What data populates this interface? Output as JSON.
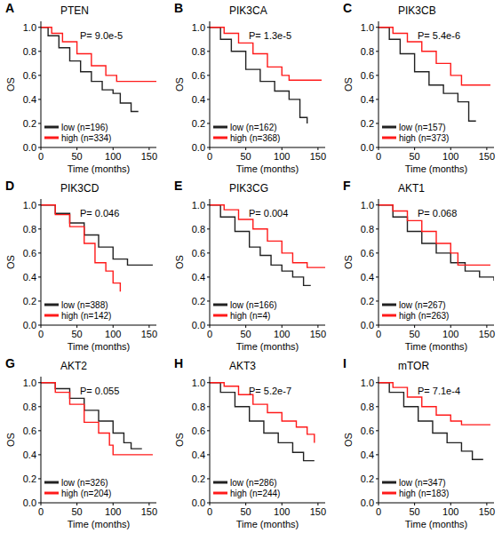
{
  "chart_data": [
    {
      "type": "line",
      "panel": "A",
      "title": "PTEN",
      "annotations": [
        "P= 9.0e-5"
      ],
      "x_label": "Time (months)",
      "y_label": "OS",
      "xlim": [
        0,
        160
      ],
      "xticks": [
        0,
        50,
        100,
        150
      ],
      "ylim": [
        0,
        1.05
      ],
      "yticks": [
        {
          "value": 0,
          "label": "0.0"
        },
        0.2,
        0.4,
        0.6,
        0.8,
        {
          "value": 1,
          "label": "1.0"
        }
      ],
      "grid": false,
      "legend": "lower left",
      "line_style": "step",
      "series": [
        {
          "name": "low (n=196)",
          "color": "#222222",
          "x": [
            0,
            10,
            25,
            40,
            55,
            70,
            85,
            100,
            110,
            125,
            135
          ],
          "values": [
            1,
            0.93,
            0.83,
            0.72,
            0.63,
            0.55,
            0.48,
            0.45,
            0.37,
            0.3,
            0.3
          ]
        },
        {
          "name": "high (n=334)",
          "color": "#ff1a1a",
          "x": [
            0,
            15,
            30,
            50,
            70,
            90,
            105,
            160
          ],
          "values": [
            1,
            0.95,
            0.88,
            0.78,
            0.68,
            0.6,
            0.55,
            0.55
          ]
        }
      ]
    },
    {
      "type": "line",
      "panel": "B",
      "title": "PIK3CA",
      "annotations": [
        "P= 1.3e-5"
      ],
      "x_label": "Time (months)",
      "y_label": "OS",
      "xlim": [
        0,
        160
      ],
      "xticks": [
        0,
        50,
        100,
        150
      ],
      "ylim": [
        0,
        1.05
      ],
      "yticks": [
        {
          "value": 0,
          "label": "0.0"
        },
        0.2,
        0.4,
        0.6,
        0.8,
        {
          "value": 1,
          "label": "1.0"
        }
      ],
      "grid": false,
      "legend": "lower left",
      "line_style": "step",
      "series": [
        {
          "name": "low (n=162)",
          "color": "#222222",
          "x": [
            0,
            15,
            30,
            50,
            70,
            90,
            110,
            125,
            135
          ],
          "values": [
            1,
            0.9,
            0.8,
            0.65,
            0.55,
            0.47,
            0.4,
            0.25,
            0.2
          ]
        },
        {
          "name": "high (n=368)",
          "color": "#ff1a1a",
          "x": [
            0,
            20,
            40,
            60,
            80,
            100,
            110,
            155
          ],
          "values": [
            1,
            0.95,
            0.87,
            0.78,
            0.67,
            0.6,
            0.56,
            0.56
          ]
        }
      ]
    },
    {
      "type": "line",
      "panel": "C",
      "title": "PIK3CB",
      "annotations": [
        "P= 5.4e-6"
      ],
      "x_label": "Time (months)",
      "y_label": "OS",
      "xlim": [
        0,
        160
      ],
      "xticks": [
        0,
        50,
        100,
        150
      ],
      "ylim": [
        0,
        1.05
      ],
      "yticks": [
        {
          "value": 0,
          "label": "0.0"
        },
        0.2,
        0.4,
        0.6,
        0.8,
        {
          "value": 1,
          "label": "1.0"
        }
      ],
      "grid": false,
      "legend": "lower left",
      "line_style": "step",
      "series": [
        {
          "name": "low (n=157)",
          "color": "#222222",
          "x": [
            0,
            15,
            30,
            50,
            70,
            90,
            110,
            125,
            135
          ],
          "values": [
            1,
            0.9,
            0.78,
            0.63,
            0.52,
            0.45,
            0.38,
            0.22,
            0.22
          ]
        },
        {
          "name": "high (n=373)",
          "color": "#ff1a1a",
          "x": [
            0,
            20,
            40,
            60,
            80,
            100,
            115,
            155
          ],
          "values": [
            1,
            0.95,
            0.88,
            0.8,
            0.7,
            0.6,
            0.52,
            0.52
          ]
        }
      ]
    },
    {
      "type": "line",
      "panel": "D",
      "title": "PIK3CD",
      "annotations": [
        "P= 0.046"
      ],
      "x_label": "Time (months)",
      "y_label": "OS",
      "xlim": [
        0,
        160
      ],
      "xticks": [
        0,
        50,
        100,
        150
      ],
      "ylim": [
        0,
        1.05
      ],
      "yticks": [
        {
          "value": 0,
          "label": "0.0"
        },
        0.2,
        0.4,
        0.6,
        0.8,
        {
          "value": 1,
          "label": "1.0"
        }
      ],
      "grid": false,
      "legend": "lower left",
      "line_style": "step",
      "series": [
        {
          "name": "low (n=388)",
          "color": "#222222",
          "x": [
            0,
            20,
            40,
            60,
            80,
            100,
            120,
            155
          ],
          "values": [
            1,
            0.93,
            0.85,
            0.75,
            0.65,
            0.55,
            0.5,
            0.5
          ]
        },
        {
          "name": "high (n=142)",
          "color": "#ff1a1a",
          "x": [
            0,
            20,
            40,
            60,
            75,
            90,
            100,
            110
          ],
          "values": [
            1,
            0.92,
            0.82,
            0.68,
            0.52,
            0.45,
            0.35,
            0.28
          ]
        }
      ]
    },
    {
      "type": "line",
      "panel": "E",
      "title": "PIK3CG",
      "annotations": [
        "P= 0.004"
      ],
      "x_label": "Time (months)",
      "y_label": "OS",
      "xlim": [
        0,
        160
      ],
      "xticks": [
        0,
        50,
        100,
        150
      ],
      "ylim": [
        0,
        1.05
      ],
      "yticks": [
        {
          "value": 0,
          "label": "0.0"
        },
        0.2,
        0.4,
        0.6,
        0.8,
        {
          "value": 1,
          "label": "1.0"
        }
      ],
      "grid": false,
      "legend": "lower left",
      "line_style": "step",
      "series": [
        {
          "name": "low (n=166)",
          "color": "#222222",
          "x": [
            0,
            15,
            35,
            55,
            70,
            85,
            100,
            115,
            130,
            140
          ],
          "values": [
            1,
            0.9,
            0.78,
            0.65,
            0.58,
            0.5,
            0.45,
            0.4,
            0.33,
            0.33
          ]
        },
        {
          "name": "high (n=4)",
          "color": "#ff1a1a",
          "x": [
            0,
            20,
            40,
            60,
            80,
            100,
            115,
            135,
            160
          ],
          "values": [
            1,
            0.96,
            0.88,
            0.8,
            0.7,
            0.6,
            0.52,
            0.48,
            0.48
          ]
        }
      ]
    },
    {
      "type": "line",
      "panel": "F",
      "title": "AKT1",
      "annotations": [
        "P= 0.068"
      ],
      "x_label": "Time (months)",
      "y_label": "OS",
      "xlim": [
        0,
        160
      ],
      "xticks": [
        0,
        50,
        100,
        150
      ],
      "ylim": [
        0,
        1.05
      ],
      "yticks": [
        {
          "value": 0,
          "label": "0.0"
        },
        0.2,
        0.4,
        0.6,
        0.8,
        {
          "value": 1,
          "label": "1.0"
        }
      ],
      "grid": false,
      "legend": "lower left",
      "line_style": "step",
      "series": [
        {
          "name": "low (n=267)",
          "color": "#222222",
          "x": [
            0,
            20,
            40,
            60,
            80,
            100,
            120,
            140,
            160
          ],
          "values": [
            1,
            0.9,
            0.78,
            0.68,
            0.6,
            0.52,
            0.45,
            0.4,
            0.37
          ]
        },
        {
          "name": "high (n=263)",
          "color": "#ff1a1a",
          "x": [
            0,
            20,
            40,
            60,
            80,
            100,
            110,
            155
          ],
          "values": [
            1,
            0.95,
            0.87,
            0.78,
            0.68,
            0.6,
            0.5,
            0.5
          ]
        }
      ]
    },
    {
      "type": "line",
      "panel": "G",
      "title": "AKT2",
      "annotations": [
        "P= 0.055"
      ],
      "x_label": "Time (months)",
      "y_label": "OS",
      "xlim": [
        0,
        160
      ],
      "xticks": [
        0,
        50,
        100,
        150
      ],
      "ylim": [
        0,
        1.05
      ],
      "yticks": [
        {
          "value": 0,
          "label": "0.0"
        },
        0.2,
        0.4,
        0.6,
        0.8,
        {
          "value": 1,
          "label": "1.0"
        }
      ],
      "grid": false,
      "legend": "lower left",
      "line_style": "step",
      "series": [
        {
          "name": "low (n=326)",
          "color": "#222222",
          "x": [
            0,
            20,
            40,
            60,
            80,
            100,
            115,
            125,
            140
          ],
          "values": [
            1,
            0.95,
            0.87,
            0.77,
            0.68,
            0.58,
            0.5,
            0.45,
            0.45
          ]
        },
        {
          "name": "high (n=204)",
          "color": "#ff1a1a",
          "x": [
            0,
            20,
            40,
            60,
            80,
            95,
            100,
            155
          ],
          "values": [
            1,
            0.92,
            0.82,
            0.67,
            0.58,
            0.48,
            0.4,
            0.4
          ]
        }
      ]
    },
    {
      "type": "line",
      "panel": "H",
      "title": "AKT3",
      "annotations": [
        "P= 5.2e-7"
      ],
      "x_label": "Time (months)",
      "y_label": "OS",
      "xlim": [
        0,
        160
      ],
      "xticks": [
        0,
        50,
        100,
        150
      ],
      "ylim": [
        0,
        1.05
      ],
      "yticks": [
        {
          "value": 0,
          "label": "0.0"
        },
        0.2,
        0.4,
        0.6,
        0.8,
        {
          "value": 1,
          "label": "1.0"
        }
      ],
      "grid": false,
      "legend": "lower left",
      "line_style": "step",
      "series": [
        {
          "name": "low (n=286)",
          "color": "#222222",
          "x": [
            0,
            15,
            35,
            55,
            75,
            95,
            115,
            130,
            145
          ],
          "values": [
            1,
            0.92,
            0.8,
            0.68,
            0.58,
            0.5,
            0.42,
            0.35,
            0.35
          ]
        },
        {
          "name": "high (n=244)",
          "color": "#ff1a1a",
          "x": [
            0,
            20,
            40,
            60,
            80,
            100,
            120,
            135,
            145
          ],
          "values": [
            1,
            0.97,
            0.9,
            0.82,
            0.75,
            0.68,
            0.63,
            0.57,
            0.5
          ]
        }
      ]
    },
    {
      "type": "line",
      "panel": "I",
      "title": "mTOR",
      "annotations": [
        "P= 7.1e-4"
      ],
      "x_label": "Time (months)",
      "y_label": "OS",
      "xlim": [
        0,
        160
      ],
      "xticks": [
        0,
        50,
        100,
        150
      ],
      "ylim": [
        0,
        1.05
      ],
      "yticks": [
        {
          "value": 0,
          "label": "0.0"
        },
        0.2,
        0.4,
        0.6,
        0.8,
        {
          "value": 1,
          "label": "1.0"
        }
      ],
      "grid": false,
      "legend": "lower left",
      "line_style": "step",
      "series": [
        {
          "name": "low (n=347)",
          "color": "#222222",
          "x": [
            0,
            15,
            35,
            55,
            75,
            95,
            115,
            130,
            145
          ],
          "values": [
            1,
            0.92,
            0.8,
            0.68,
            0.58,
            0.5,
            0.43,
            0.36,
            0.36
          ]
        },
        {
          "name": "high (n=183)",
          "color": "#ff1a1a",
          "x": [
            0,
            20,
            40,
            60,
            80,
            100,
            115,
            155
          ],
          "values": [
            1,
            0.96,
            0.88,
            0.8,
            0.73,
            0.68,
            0.65,
            0.65
          ]
        }
      ]
    }
  ]
}
